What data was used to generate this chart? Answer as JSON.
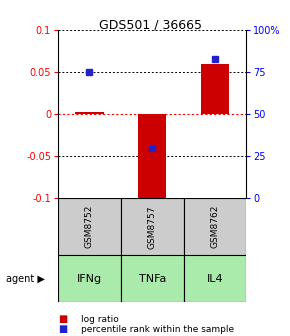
{
  "title": "GDS501 / 36665",
  "samples": [
    "GSM8752",
    "GSM8757",
    "GSM8762"
  ],
  "agents": [
    "IFNg",
    "TNFa",
    "IL4"
  ],
  "log_ratios": [
    0.003,
    -0.103,
    0.06
  ],
  "percentile_ranks": [
    75,
    30,
    83
  ],
  "ylim_left": [
    -0.1,
    0.1
  ],
  "ylim_right": [
    0,
    100
  ],
  "yticks_left": [
    -0.1,
    -0.05,
    0,
    0.05,
    0.1
  ],
  "yticks_right": [
    0,
    25,
    50,
    75,
    100
  ],
  "ytick_labels_right": [
    "0",
    "25",
    "50",
    "75",
    "100%"
  ],
  "bar_color": "#cc0000",
  "dot_color": "#2222cc",
  "gray_bg": "#cccccc",
  "green_bg": "#aaeaaa",
  "legend_bar": "log ratio",
  "legend_dot": "percentile rank within the sample"
}
